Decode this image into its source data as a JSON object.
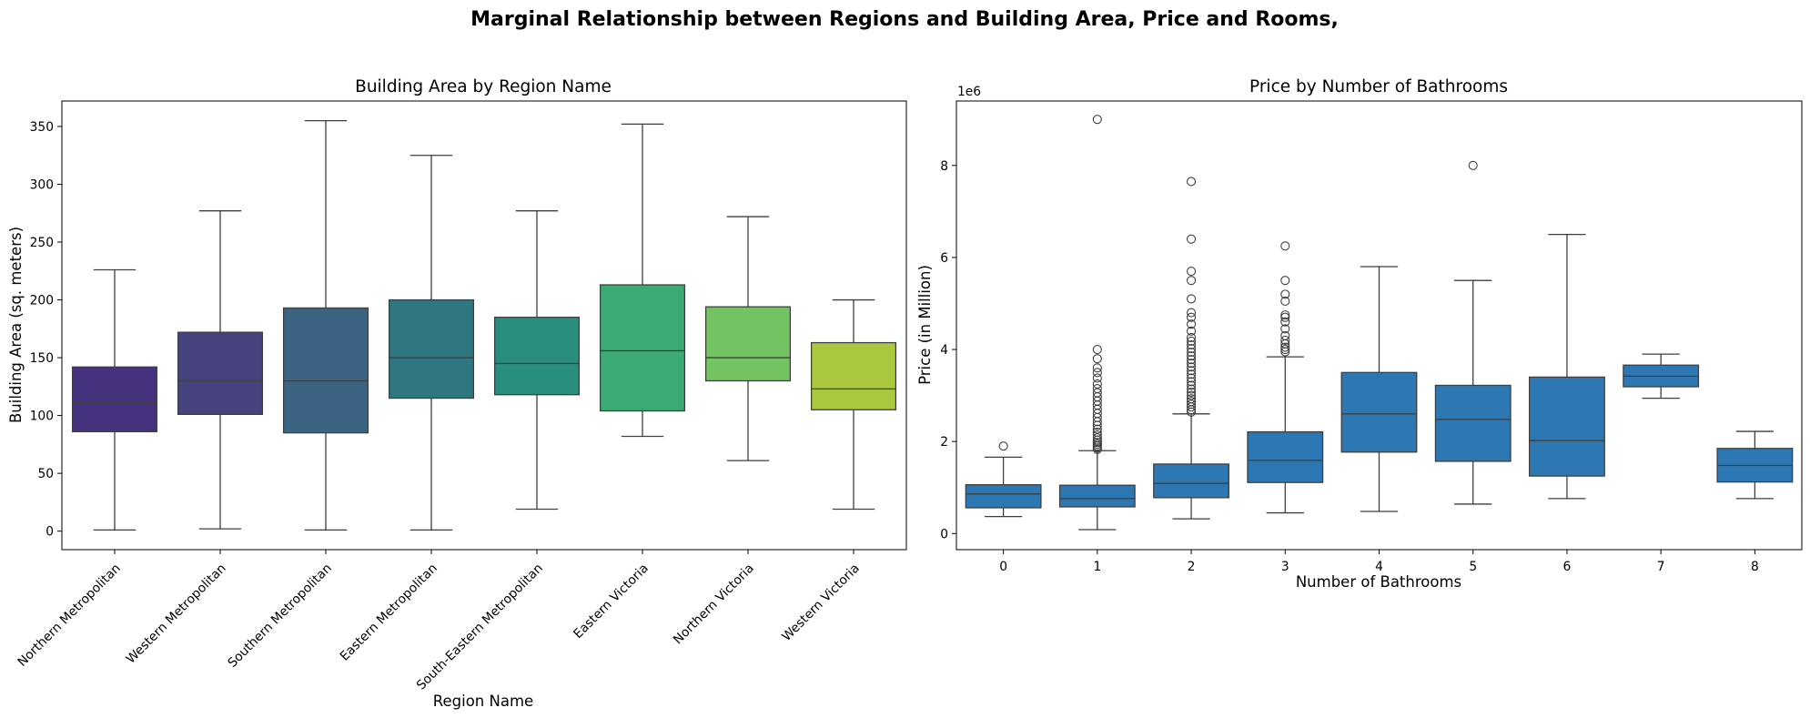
{
  "figure": {
    "suptitle": "Marginal Relationship between Regions and Building Area, Price and Rooms,"
  },
  "chart_data": [
    {
      "type": "box",
      "title": "Building Area by Region Name",
      "xlabel": "Region Name",
      "ylabel": "Building Area (sq. meters)",
      "ylim": [
        -16,
        372
      ],
      "yticks": [
        0,
        50,
        100,
        150,
        200,
        250,
        300,
        350
      ],
      "grid": false,
      "palette": "viridis",
      "categories": [
        "Northern Metropolitan",
        "Western Metropolitan",
        "Southern Metropolitan",
        "Eastern Metropolitan",
        "South-Eastern Metropolitan",
        "Eastern Victoria",
        "Northern Victoria",
        "Western Victoria"
      ],
      "colors": [
        "#46327e",
        "#46427e",
        "#3b6483",
        "#2e7780",
        "#2a8e7c",
        "#3bab73",
        "#73c363",
        "#aac83d"
      ],
      "boxes": [
        {
          "whislo": 1,
          "q1": 86,
          "med": 111,
          "q3": 142,
          "whishi": 226
        },
        {
          "whislo": 2,
          "q1": 101,
          "med": 130,
          "q3": 172,
          "whishi": 277
        },
        {
          "whislo": 1,
          "q1": 85,
          "med": 130,
          "q3": 193,
          "whishi": 355
        },
        {
          "whislo": 1,
          "q1": 115,
          "med": 150,
          "q3": 200,
          "whishi": 325
        },
        {
          "whislo": 19,
          "q1": 118,
          "med": 145,
          "q3": 185,
          "whishi": 277
        },
        {
          "whislo": 82,
          "q1": 104,
          "med": 156,
          "q3": 213,
          "whishi": 352
        },
        {
          "whislo": 61,
          "q1": 130,
          "med": 150,
          "q3": 194,
          "whishi": 272
        },
        {
          "whislo": 19,
          "q1": 105,
          "med": 123,
          "q3": 163,
          "whishi": 200
        }
      ]
    },
    {
      "type": "box",
      "title": "Price by Number of Bathrooms",
      "xlabel": "Number of Bathrooms",
      "ylabel": "Price (in Million)",
      "y_offset_label": "1e6",
      "y_scale_factor": 1000000,
      "ylim": [
        -350000,
        9400000
      ],
      "yticks": [
        0,
        2000000,
        4000000,
        6000000,
        8000000
      ],
      "ytick_labels": [
        "0",
        "2",
        "4",
        "6",
        "8"
      ],
      "grid": false,
      "color": "#2d77b3",
      "categories": [
        "0",
        "1",
        "2",
        "3",
        "4",
        "5",
        "6",
        "7",
        "8"
      ],
      "boxes": [
        {
          "whislo": 370000,
          "q1": 560000,
          "med": 860000,
          "q3": 1060000,
          "whishi": 1660000,
          "fliers": [
            1900000
          ]
        },
        {
          "whislo": 85000,
          "q1": 580000,
          "med": 760000,
          "q3": 1050000,
          "whishi": 1800000,
          "fliers": [
            1830000,
            1860000,
            1900000,
            1940000,
            1980000,
            2030000,
            2080000,
            2140000,
            2200000,
            2270000,
            2350000,
            2430000,
            2520000,
            2610000,
            2700000,
            2790000,
            2880000,
            2970000,
            3060000,
            3150000,
            3250000,
            3380000,
            3500000,
            3600000,
            3800000,
            4000000,
            9000000
          ]
        },
        {
          "whislo": 320000,
          "q1": 780000,
          "med": 1090000,
          "q3": 1510000,
          "whishi": 2600000,
          "fliers": [
            2640000,
            2690000,
            2750000,
            2810000,
            2870000,
            2930000,
            3000000,
            3070000,
            3140000,
            3220000,
            3300000,
            3380000,
            3460000,
            3540000,
            3620000,
            3700000,
            3780000,
            3860000,
            3940000,
            4020000,
            4100000,
            4180000,
            4260000,
            4400000,
            4550000,
            4700000,
            4800000,
            5100000,
            5500000,
            5700000,
            6400000,
            7650000
          ]
        },
        {
          "whislo": 450000,
          "q1": 1110000,
          "med": 1590000,
          "q3": 2210000,
          "whishi": 3840000,
          "fliers": [
            3950000,
            4000000,
            4050000,
            4120000,
            4200000,
            4300000,
            4450000,
            4600000,
            4700000,
            4750000,
            5050000,
            5200000,
            5500000,
            6250000
          ]
        },
        {
          "whislo": 480000,
          "q1": 1770000,
          "med": 2600000,
          "q3": 3500000,
          "whishi": 5800000
        },
        {
          "whislo": 640000,
          "q1": 1570000,
          "med": 2480000,
          "q3": 3220000,
          "whishi": 5500000,
          "fliers": [
            8000000
          ]
        },
        {
          "whislo": 760000,
          "q1": 1250000,
          "med": 2020000,
          "q3": 3400000,
          "whishi": 6500000
        },
        {
          "whislo": 2940000,
          "q1": 3190000,
          "med": 3420000,
          "q3": 3660000,
          "whishi": 3900000
        },
        {
          "whislo": 760000,
          "q1": 1120000,
          "med": 1480000,
          "q3": 1850000,
          "whishi": 2220000
        }
      ]
    }
  ]
}
